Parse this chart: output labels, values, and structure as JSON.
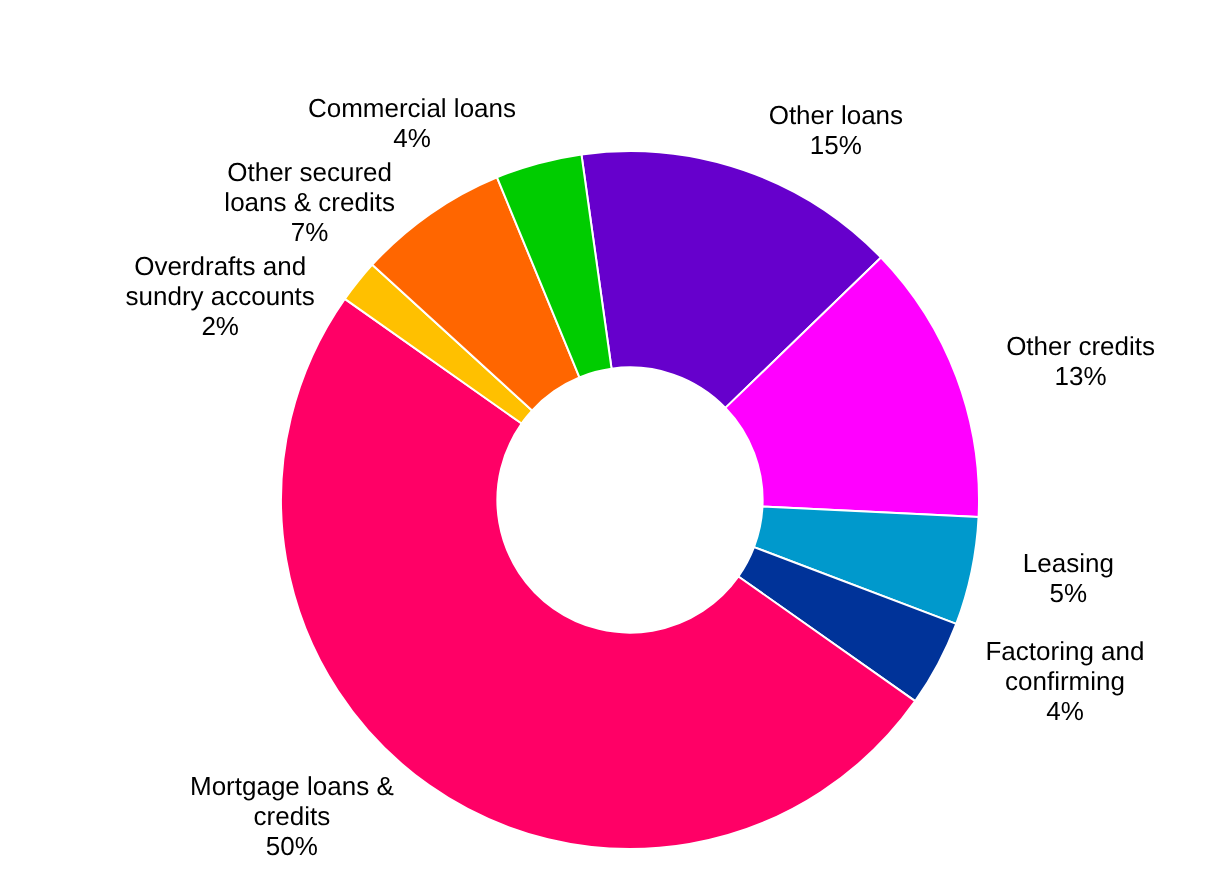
{
  "chart_data": {
    "type": "donut",
    "categories": [
      "Other loans",
      "Other credits",
      "Leasing",
      "Factoring and confirming",
      "Mortgage loans & credits",
      "Overdrafts and sundry accounts",
      "Other secured loans & credits",
      "Commercial loans"
    ],
    "values": [
      15,
      13,
      5,
      4,
      50,
      2,
      7,
      4
    ],
    "colors": [
      "#6600cc",
      "#ff00ff",
      "#0099cc",
      "#003399",
      "#ff0066",
      "#ffc000",
      "#ff6600",
      "#00cc00"
    ],
    "value_labels": [
      "15%",
      "13%",
      "5%",
      "4%",
      "50%",
      "2%",
      "7%",
      "4%"
    ],
    "legend": false
  }
}
